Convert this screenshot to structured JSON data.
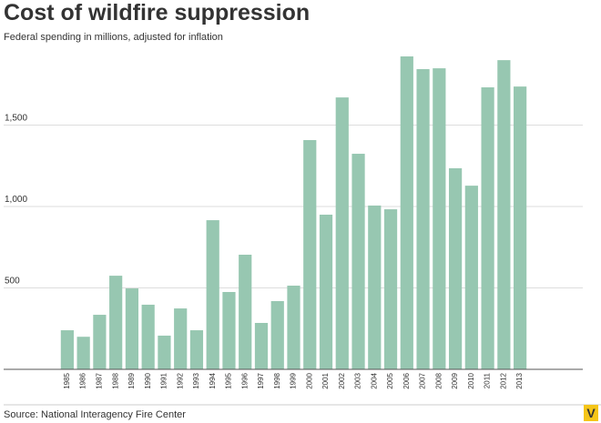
{
  "chart_data": {
    "type": "bar",
    "title": "Cost of wildfire suppression",
    "subtitle": "Federal spending in millions, adjusted for inflation",
    "source": "Source: National Interagency Fire Center",
    "logo": "V",
    "categories": [
      "1985",
      "1986",
      "1987",
      "1988",
      "1989",
      "1990",
      "1991",
      "1992",
      "1993",
      "1994",
      "1995",
      "1996",
      "1997",
      "1998",
      "1999",
      "2000",
      "2001",
      "2002",
      "2003",
      "2004",
      "2005",
      "2006",
      "2007",
      "2008",
      "2009",
      "2010",
      "2011",
      "2012",
      "2013"
    ],
    "values": [
      240,
      200,
      335,
      575,
      497,
      397,
      207,
      374,
      240,
      916,
      475,
      704,
      285,
      419,
      514,
      1408,
      950,
      1670,
      1324,
      1006,
      983,
      1922,
      1844,
      1849,
      1235,
      1128,
      1732,
      1899,
      1737
    ],
    "color": "#97c7b1",
    "ylim": [
      0,
      1950
    ],
    "yticks": [
      500,
      {
        "value": 1000,
        "label": "1,000"
      },
      {
        "value": 1500,
        "label": "1,500"
      }
    ],
    "grid": true
  }
}
